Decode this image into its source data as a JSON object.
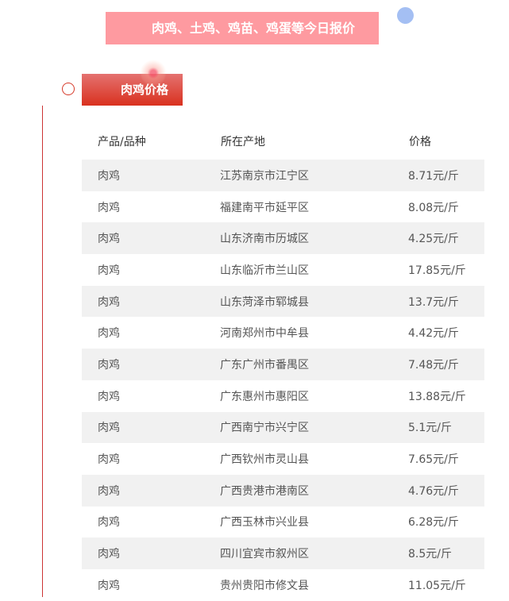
{
  "banner": {
    "title": "肉鸡、土鸡、鸡苗、鸡蛋等今日报价"
  },
  "section": {
    "label": "肉鸡价格"
  },
  "colors": {
    "banner": "#fe9aa0",
    "accent": "#d9311e",
    "dot": "#a4bff3",
    "row_alt": "#f1f1f1"
  },
  "table": {
    "headers": [
      "产品/品种",
      "所在产地",
      "价格"
    ],
    "rows": [
      [
        "肉鸡",
        "江苏南京市江宁区",
        "8.71元/斤"
      ],
      [
        "肉鸡",
        "福建南平市延平区",
        "8.08元/斤"
      ],
      [
        "肉鸡",
        "山东济南市历城区",
        "4.25元/斤"
      ],
      [
        "肉鸡",
        "山东临沂市兰山区",
        "17.85元/斤"
      ],
      [
        "肉鸡",
        "山东菏泽市郓城县",
        "13.7元/斤"
      ],
      [
        "肉鸡",
        "河南郑州市中牟县",
        "4.42元/斤"
      ],
      [
        "肉鸡",
        "广东广州市番禺区",
        "7.48元/斤"
      ],
      [
        "肉鸡",
        "广东惠州市惠阳区",
        "13.88元/斤"
      ],
      [
        "肉鸡",
        "广西南宁市兴宁区",
        "5.1元/斤"
      ],
      [
        "肉鸡",
        "广西钦州市灵山县",
        "7.65元/斤"
      ],
      [
        "肉鸡",
        "广西贵港市港南区",
        "4.76元/斤"
      ],
      [
        "肉鸡",
        "广西玉林市兴业县",
        "6.28元/斤"
      ],
      [
        "肉鸡",
        "四川宜宾市叙州区",
        "8.5元/斤"
      ],
      [
        "肉鸡",
        "贵州贵阳市修文县",
        "11.05元/斤"
      ]
    ]
  }
}
